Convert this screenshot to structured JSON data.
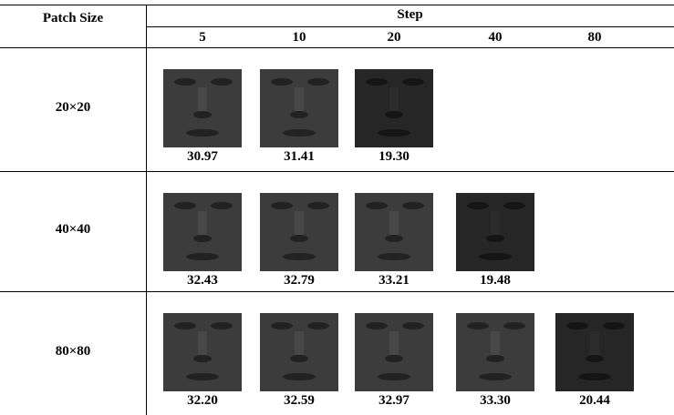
{
  "header": {
    "corner": "Patch Size",
    "group": "Step",
    "steps": [
      "5",
      "10",
      "20",
      "40",
      "80"
    ]
  },
  "rows": [
    {
      "label": "20×20",
      "values": [
        "30.97",
        "31.41",
        "19.30"
      ]
    },
    {
      "label": "40×40",
      "values": [
        "32.43",
        "32.79",
        "33.21",
        "19.48"
      ]
    },
    {
      "label": "80×80",
      "values": [
        "32.20",
        "32.59",
        "32.97",
        "33.30",
        "20.44"
      ]
    }
  ]
}
